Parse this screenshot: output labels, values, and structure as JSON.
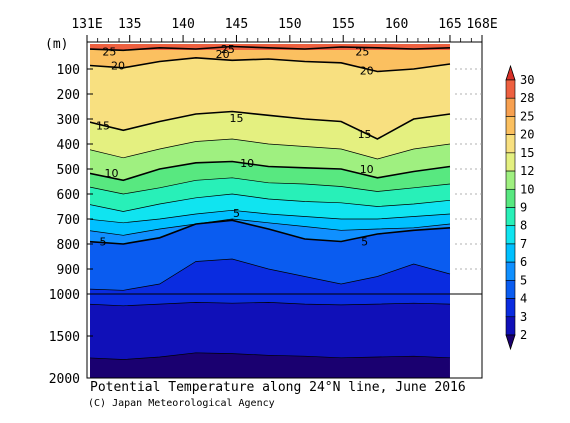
{
  "chart_data": {
    "type": "section contour",
    "title": "Potential Temperature along 24°N line, June 2016",
    "credit": "(C) Japan Meteorological Agency",
    "y_unit": "(m)",
    "x_axis": {
      "ticks": [
        131,
        135,
        140,
        145,
        150,
        155,
        160,
        165,
        168
      ],
      "tick_labels": [
        "131E",
        "135",
        "140",
        "145",
        "150",
        "155",
        "160",
        "165",
        "168E"
      ],
      "range": [
        131,
        168
      ],
      "data_extent": [
        131,
        165
      ]
    },
    "y_axis": {
      "upper_ticks": [
        100,
        200,
        300,
        400,
        500,
        600,
        700,
        800,
        900,
        1000
      ],
      "upper_labels": [
        "100",
        "200",
        "300",
        "400",
        "500",
        "600",
        "700",
        "800",
        "900",
        "1000"
      ],
      "lower_ticks": [
        1500,
        2000
      ],
      "lower_labels": [
        "1500",
        "2000"
      ],
      "range": [
        0,
        2000
      ],
      "scale_break": 1000
    },
    "colorbar": {
      "levels": [
        2,
        3,
        4,
        5,
        6,
        7,
        8,
        9,
        10,
        12,
        15,
        20,
        25,
        28,
        30
      ],
      "labels": [
        "2",
        "3",
        "4",
        "5",
        "6",
        "7",
        "8",
        "9",
        "10",
        "12",
        "15",
        "20",
        "25",
        "28",
        "30"
      ],
      "colors": [
        "#1a0070",
        "#1010b8",
        "#0a2ce0",
        "#0a5cf0",
        "#1090ff",
        "#00c0ff",
        "#10e4f0",
        "#28f0b8",
        "#58e880",
        "#9ff080",
        "#e4f080",
        "#f8e080",
        "#fbc060",
        "#f7a050",
        "#ee6040",
        "#d83028"
      ]
    },
    "contour_labels": [
      {
        "text": "25",
        "x": 133.1,
        "depth": 30
      },
      {
        "text": "25",
        "x": 144.2,
        "depth": 20
      },
      {
        "text": "20",
        "x": 143.7,
        "depth": 40
      },
      {
        "text": "25",
        "x": 156.8,
        "depth": 30
      },
      {
        "text": "20",
        "x": 133.9,
        "depth": 85
      },
      {
        "text": "20",
        "x": 157.2,
        "depth": 105
      },
      {
        "text": "15",
        "x": 132.5,
        "depth": 325
      },
      {
        "text": "15",
        "x": 145.0,
        "depth": 295
      },
      {
        "text": "15",
        "x": 157.0,
        "depth": 360
      },
      {
        "text": "10",
        "x": 133.3,
        "depth": 515
      },
      {
        "text": "10",
        "x": 146.0,
        "depth": 475
      },
      {
        "text": "10",
        "x": 157.2,
        "depth": 500
      },
      {
        "text": "5",
        "x": 145.0,
        "depth": 675
      },
      {
        "text": "5",
        "x": 132.5,
        "depth": 790
      },
      {
        "text": "5",
        "x": 157.0,
        "depth": 790
      }
    ],
    "isotherms": [
      {
        "temp": 25,
        "depths": [
          20,
          25,
          15,
          20,
          10,
          15,
          20,
          12,
          15,
          20,
          15
        ]
      },
      {
        "temp": 20,
        "depths": [
          85,
          95,
          70,
          55,
          65,
          60,
          70,
          75,
          110,
          100,
          80
        ]
      },
      {
        "temp": 15,
        "depths": [
          310,
          345,
          310,
          280,
          270,
          285,
          300,
          310,
          380,
          300,
          280
        ]
      },
      {
        "temp": 12,
        "depths": [
          420,
          455,
          420,
          390,
          380,
          400,
          410,
          420,
          460,
          420,
          400
        ]
      },
      {
        "temp": 10,
        "depths": [
          515,
          545,
          500,
          475,
          470,
          490,
          495,
          500,
          535,
          510,
          490
        ]
      },
      {
        "temp": 9,
        "depths": [
          570,
          600,
          575,
          545,
          535,
          555,
          560,
          570,
          590,
          575,
          560
        ]
      },
      {
        "temp": 8,
        "depths": [
          640,
          670,
          640,
          615,
          600,
          620,
          630,
          635,
          650,
          640,
          625
        ]
      },
      {
        "temp": 7,
        "depths": [
          700,
          715,
          700,
          680,
          665,
          680,
          690,
          700,
          700,
          690,
          680
        ]
      },
      {
        "temp": 6,
        "depths": [
          745,
          765,
          740,
          720,
          700,
          715,
          730,
          745,
          740,
          735,
          720
        ]
      },
      {
        "temp": 5,
        "depths": [
          790,
          800,
          775,
          720,
          705,
          740,
          780,
          790,
          760,
          745,
          735
        ]
      },
      {
        "temp": 4,
        "depths": [
          980,
          985,
          960,
          870,
          860,
          900,
          930,
          960,
          930,
          880,
          920
        ]
      },
      {
        "temp": 3,
        "depths": [
          1120,
          1140,
          1120,
          1100,
          1110,
          1100,
          1120,
          1130,
          1120,
          1110,
          1120
        ]
      },
      {
        "temp": 2,
        "depths": [
          1760,
          1780,
          1750,
          1700,
          1710,
          1730,
          1740,
          1760,
          1750,
          1740,
          1760
        ]
      }
    ],
    "isotherm_x": [
      131,
      134.4,
      137.8,
      141.2,
      144.6,
      148,
      151.4,
      154.8,
      158.2,
      161.6,
      165
    ]
  }
}
